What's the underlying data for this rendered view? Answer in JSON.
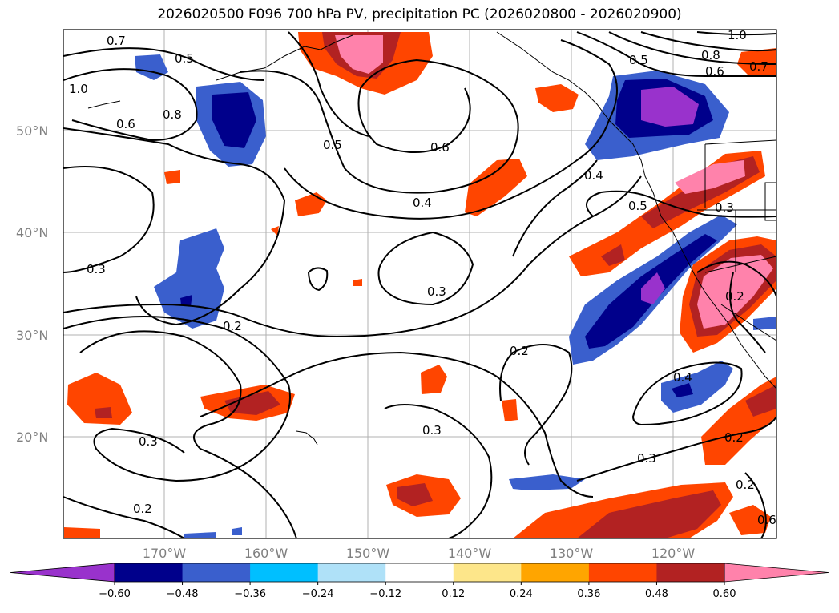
{
  "title": "2026020500 F096 700 hPa PV, precipitation PC (2026020800 - 2026020900)",
  "map": {
    "lat_ticks": [
      "50°N",
      "40°N",
      "30°N",
      "20°N"
    ],
    "lon_ticks": [
      "170°W",
      "160°W",
      "150°W",
      "140°W",
      "130°W",
      "120°W"
    ],
    "contour_labels": [
      "0.7",
      "0.5",
      "1.0",
      "0.8",
      "0.6",
      "0.5",
      "0.6",
      "0.4",
      "0.3",
      "0.3",
      "0.2",
      "0.2",
      "0.3",
      "0.2",
      "0.3",
      "0.3",
      "0.4",
      "0.2",
      "0.2",
      "0.5",
      "0.4",
      "0.3",
      "0.2",
      "0.8",
      "0.6",
      "0.7",
      "1.0",
      "0.5",
      "0.6"
    ]
  },
  "colorbar": {
    "colors": [
      "#9932cc",
      "#00008b",
      "#3a5fcd",
      "#00bfff",
      "#afe1f8",
      "#ffffff",
      "#fde68a",
      "#ffa500",
      "#ff4500",
      "#b22222",
      "#ff82ab"
    ],
    "tick_labels": [
      "−0.60",
      "−0.48",
      "−0.36",
      "−0.24",
      "−0.12",
      "0.12",
      "0.24",
      "0.36",
      "0.48",
      "0.60"
    ]
  }
}
